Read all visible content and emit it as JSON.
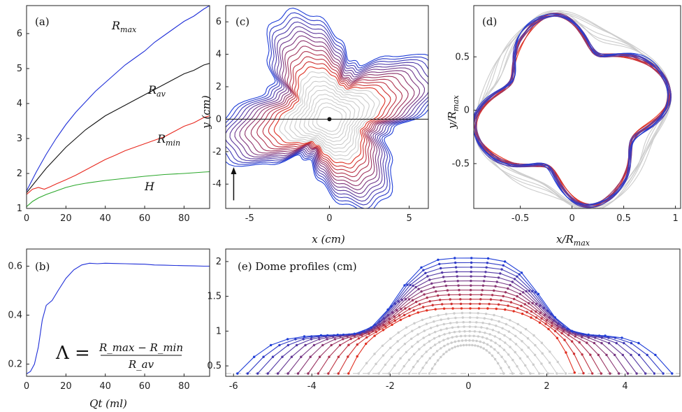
{
  "chart_data": [
    {
      "panel": "(a)",
      "type": "line",
      "xlim": [
        0,
        93
      ],
      "ylim": [
        1,
        6.8
      ],
      "xticks": [
        0,
        20,
        40,
        60,
        80
      ],
      "yticks": [
        1,
        2,
        3,
        4,
        5,
        6
      ],
      "grid": false,
      "series": [
        {
          "name": "R_max",
          "label_main": "R",
          "label_sub": "max",
          "color": "#1f2fd8",
          "x": [
            0,
            5,
            10,
            15,
            20,
            25,
            30,
            35,
            40,
            45,
            50,
            55,
            60,
            65,
            70,
            75,
            80,
            85,
            90,
            93
          ],
          "y": [
            1.5,
            2.05,
            2.55,
            3.0,
            3.4,
            3.75,
            4.05,
            4.35,
            4.6,
            4.85,
            5.1,
            5.3,
            5.5,
            5.75,
            5.95,
            6.15,
            6.35,
            6.5,
            6.7,
            6.8
          ]
        },
        {
          "name": "R_av",
          "label_main": "R",
          "label_sub": "av",
          "color": "#111111",
          "x": [
            0,
            5,
            10,
            15,
            20,
            25,
            30,
            35,
            40,
            45,
            50,
            55,
            60,
            65,
            70,
            75,
            80,
            85,
            90,
            93
          ],
          "y": [
            1.45,
            1.8,
            2.15,
            2.45,
            2.75,
            3.0,
            3.25,
            3.45,
            3.65,
            3.8,
            3.95,
            4.1,
            4.25,
            4.4,
            4.55,
            4.7,
            4.85,
            4.95,
            5.1,
            5.15
          ]
        },
        {
          "name": "R_min",
          "label_main": "R",
          "label_sub": "min",
          "color": "#e8281e",
          "x": [
            0,
            3,
            6,
            9,
            12,
            15,
            20,
            25,
            30,
            35,
            40,
            45,
            50,
            55,
            60,
            65,
            70,
            75,
            80,
            85,
            90,
            93
          ],
          "y": [
            1.4,
            1.55,
            1.6,
            1.55,
            1.62,
            1.7,
            1.82,
            1.95,
            2.1,
            2.25,
            2.4,
            2.52,
            2.65,
            2.75,
            2.85,
            2.95,
            3.05,
            3.2,
            3.35,
            3.45,
            3.6,
            3.65
          ]
        },
        {
          "name": "H",
          "label_main": "H",
          "label_sub": "",
          "color": "#2ba82b",
          "x": [
            0,
            3,
            6,
            10,
            15,
            20,
            25,
            30,
            40,
            50,
            60,
            70,
            80,
            90,
            93
          ],
          "y": [
            1.05,
            1.2,
            1.3,
            1.4,
            1.5,
            1.6,
            1.67,
            1.72,
            1.8,
            1.86,
            1.92,
            1.97,
            2.0,
            2.04,
            2.05
          ]
        }
      ]
    },
    {
      "panel": "(b)",
      "type": "line",
      "xlabel": "Qt (ml)",
      "xlim": [
        0,
        93
      ],
      "ylim": [
        0.15,
        0.67
      ],
      "xticks": [
        0,
        20,
        40,
        60,
        80
      ],
      "yticks": [
        0.2,
        0.4,
        0.6
      ],
      "formula": {
        "lhs": "Λ =",
        "num": "R_max − R_min",
        "den": "R_av"
      },
      "series": [
        {
          "color": "#1f2fd8",
          "x": [
            0,
            2,
            4,
            6,
            8,
            10,
            13,
            16,
            20,
            24,
            28,
            32,
            36,
            40,
            45,
            50,
            55,
            60,
            65,
            70,
            75,
            80,
            85,
            90,
            93
          ],
          "y": [
            0.16,
            0.17,
            0.2,
            0.27,
            0.38,
            0.44,
            0.46,
            0.5,
            0.55,
            0.585,
            0.605,
            0.612,
            0.61,
            0.612,
            0.611,
            0.61,
            0.609,
            0.608,
            0.605,
            0.604,
            0.603,
            0.602,
            0.601,
            0.6,
            0.6
          ]
        }
      ]
    },
    {
      "panel": "(c)",
      "type": "line",
      "xlabel": "x (cm)",
      "ylabel": "y (cm)",
      "xlim": [
        -6.5,
        6.2
      ],
      "ylim": [
        -5.5,
        7
      ],
      "xticks": [
        -5,
        0,
        5
      ],
      "yticks": [
        -4,
        -2,
        0,
        2,
        4,
        6
      ],
      "n_contours": 22,
      "colors": {
        "early": "#cccccc",
        "start": "#e8301a",
        "end": "#1f3ed8"
      }
    },
    {
      "panel": "(d)",
      "type": "line",
      "xlabel": "x/R_max",
      "ylabel": "y/R_max",
      "xlim": [
        -0.95,
        1.05
      ],
      "ylim": [
        -0.92,
        0.98
      ],
      "xticks": [
        -0.5,
        0,
        0.5,
        1
      ],
      "xticklabels": [
        "-0.5",
        "0",
        "0.5",
        "1"
      ],
      "yticks": [
        -0.5,
        0,
        0.5
      ],
      "yticklabels": [
        "-0.5",
        "0",
        "0.5"
      ]
    },
    {
      "panel": "(e)",
      "title": "Dome profiles (cm)",
      "type": "line",
      "xlim": [
        -6.2,
        5.4
      ],
      "ylim": [
        0.35,
        2.18
      ],
      "xticks": [
        -6,
        -4,
        -2,
        0,
        2,
        4
      ],
      "yticks": [
        0.5,
        1,
        1.5,
        2
      ],
      "baseline": 0.39
    }
  ],
  "labels": {
    "a": "(a)",
    "b": "(b)",
    "c": "(c)",
    "d": "(d)",
    "e": "(e)",
    "e_title": "Dome profiles (cm)",
    "qt_axis": "Qt (ml)",
    "x_cm": "x (cm)",
    "y_cm": "y (cm)",
    "x_rmax": "x/R",
    "y_rmax": "y/R",
    "max_sub": "max"
  }
}
